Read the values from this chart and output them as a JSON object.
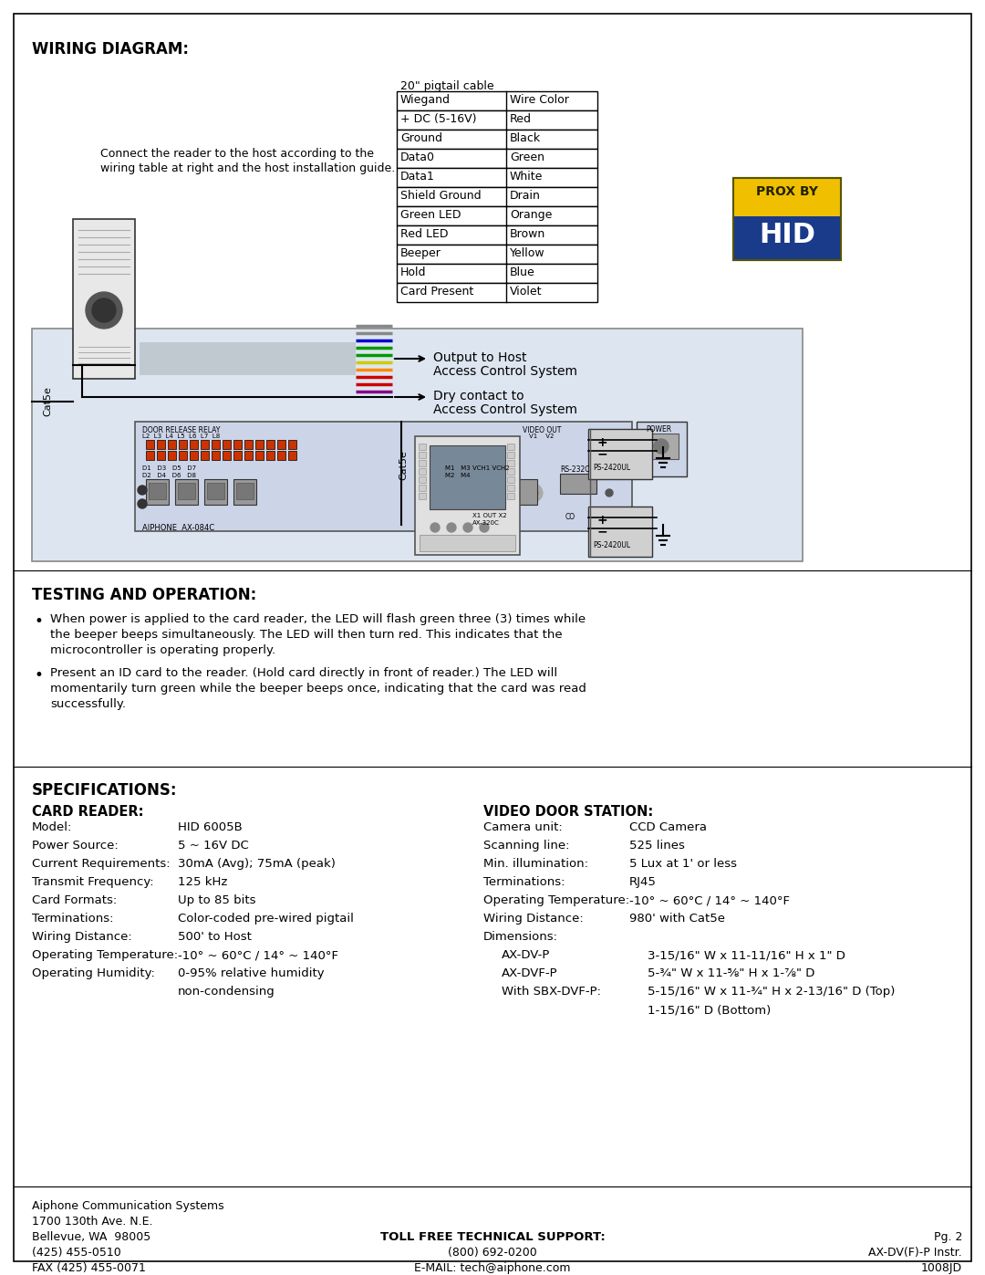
{
  "bg_color": "#ffffff",
  "title_wiring": "WIRING DIAGRAM:",
  "title_testing": "TESTING AND OPERATION:",
  "title_specs": "SPECIFICATIONS:",
  "wiring_table_title": "20\" pigtail cable",
  "wiring_table_headers": [
    "Wiegand",
    "Wire Color"
  ],
  "wiring_table_rows": [
    [
      "+ DC (5-16V)",
      "Red"
    ],
    [
      "Ground",
      "Black"
    ],
    [
      "Data0",
      "Green"
    ],
    [
      "Data1",
      "White"
    ],
    [
      "Shield Ground",
      "Drain"
    ],
    [
      "Green LED",
      "Orange"
    ],
    [
      "Red LED",
      "Brown"
    ],
    [
      "Beeper",
      "Yellow"
    ],
    [
      "Hold",
      "Blue"
    ],
    [
      "Card Present",
      "Violet"
    ]
  ],
  "connect_text_1": "Connect the reader to the host according to the",
  "connect_text_2": "wiring table at right and the host installation guide.",
  "output_label1": "Output to Host",
  "output_label2": "Access Control System",
  "dry_label1": "Dry contact to",
  "dry_label2": "Access Control System",
  "cat5e_label": "Cat5e",
  "testing_bullets": [
    "When power is applied to the card reader, the LED will flash green three (3) times while\nthe beeper beeps simultaneously. The LED will then turn red. This indicates that the\nmicrocontroller is operating properly.",
    "Present an ID card to the reader. (Hold card directly in front of reader.) The LED will\nmomentarily turn green while the beeper beeps once, indicating that the card was read\nsuccessfully."
  ],
  "card_reader_title": "CARD READER:",
  "card_reader_specs": [
    [
      "Model:",
      "HID 6005B"
    ],
    [
      "Power Source:",
      "5 ~ 16V DC"
    ],
    [
      "Current Requirements:",
      "30mA (Avg); 75mA (peak)"
    ],
    [
      "Transmit Frequency:",
      "125 kHz"
    ],
    [
      "Card Formats:",
      "Up to 85 bits"
    ],
    [
      "Terminations:",
      "Color-coded pre-wired pigtail"
    ],
    [
      "Wiring Distance:",
      "500' to Host"
    ],
    [
      "Operating Temperature:",
      "-10° ~ 60°C / 14° ~ 140°F"
    ],
    [
      "Operating Humidity:",
      "0-95% relative humidity"
    ],
    [
      "",
      "non-condensing"
    ]
  ],
  "video_door_title": "VIDEO DOOR STATION:",
  "video_door_specs": [
    [
      "Camera unit:",
      "CCD Camera"
    ],
    [
      "Scanning line:",
      "525 lines"
    ],
    [
      "Min. illumination:",
      "5 Lux at 1' or less"
    ],
    [
      "Terminations:",
      "RJ45"
    ],
    [
      "Operating Temperature:",
      "-10° ~ 60°C / 14° ~ 140°F"
    ],
    [
      "Wiring Distance:",
      "980' with Cat5e"
    ],
    [
      "Dimensions:",
      ""
    ],
    [
      "AX-DV-P",
      "3-15/16\" W x 11-11/16\" H x 1\" D"
    ],
    [
      "AX-DVF-P",
      "5-¾\" W x 11-⅝\" H x 1-⅞\" D"
    ],
    [
      "With SBX-DVF-P:",
      "5-15/16\" W x 11-¾\" H x 2-13/16\" D (Top)"
    ],
    [
      "",
      "1-15/16\" D (Bottom)"
    ]
  ],
  "footer_left": [
    "Aiphone Communication Systems",
    "1700 130th Ave. N.E.",
    "Bellevue, WA  98005",
    "(425) 455-0510",
    "FAX (425) 455-0071"
  ],
  "footer_center_title": "TOLL FREE TECHNICAL SUPPORT:",
  "footer_center": [
    "(800) 692-0200",
    "E-MAIL: tech@aiphone.com"
  ],
  "footer_right": [
    "Pg. 2",
    "AX-DV(F)-P Instr.",
    "1008JD"
  ],
  "diagram_bg": "#dde6f0",
  "wire_colors": [
    "#cc3300",
    "#111111",
    "#009900",
    "#aaaaaa",
    "#666666",
    "#cc6600",
    "#884422",
    "#cccc00",
    "#0000cc",
    "#880088"
  ]
}
